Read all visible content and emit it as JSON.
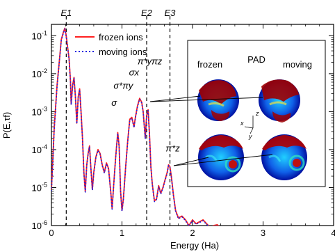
{
  "chart_data": {
    "type": "line",
    "xlabel": "Energy (Ha)",
    "ylabel": "P(E,τf)",
    "xlim": [
      0,
      4
    ],
    "ylim_log10": [
      -6,
      -0.7
    ],
    "log_y": true,
    "x_ticks": [
      "0",
      "1",
      "2",
      "3",
      "4"
    ],
    "y_ticks": [
      "10^-1",
      "10^-2",
      "10^-3",
      "10^-4",
      "10^-5",
      "10^-6"
    ],
    "legend_position": "top-center",
    "series": [
      {
        "name": "frozen ions",
        "style": "solid",
        "color": "#ff2020",
        "points": [
          [
            0.0,
            -5.05
          ],
          [
            0.04,
            -3.4
          ],
          [
            0.08,
            -2.3
          ],
          [
            0.11,
            -1.7
          ],
          [
            0.14,
            -1.1
          ],
          [
            0.17,
            -0.9
          ],
          [
            0.19,
            -0.8
          ],
          [
            0.21,
            -1.0
          ],
          [
            0.23,
            -1.3
          ],
          [
            0.25,
            -1.6
          ],
          [
            0.27,
            -2.2
          ],
          [
            0.28,
            -2.8
          ],
          [
            0.3,
            -2.3
          ],
          [
            0.32,
            -2.1
          ],
          [
            0.34,
            -2.6
          ],
          [
            0.36,
            -3.3
          ],
          [
            0.38,
            -2.6
          ],
          [
            0.4,
            -2.4
          ],
          [
            0.42,
            -3.0
          ],
          [
            0.44,
            -3.7
          ],
          [
            0.46,
            -4.6
          ],
          [
            0.48,
            -5.1
          ],
          [
            0.5,
            -4.4
          ],
          [
            0.52,
            -4.1
          ],
          [
            0.54,
            -3.9
          ],
          [
            0.56,
            -4.5
          ],
          [
            0.58,
            -5.05
          ],
          [
            0.6,
            -4.6
          ],
          [
            0.63,
            -4.2
          ],
          [
            0.66,
            -4.0
          ],
          [
            0.69,
            -4.1
          ],
          [
            0.72,
            -4.4
          ],
          [
            0.75,
            -4.6
          ],
          [
            0.78,
            -4.35
          ],
          [
            0.81,
            -4.5
          ],
          [
            0.84,
            -5.1
          ],
          [
            0.86,
            -5.55
          ],
          [
            0.88,
            -5.0
          ],
          [
            0.91,
            -4.2
          ],
          [
            0.94,
            -3.55
          ],
          [
            0.96,
            -3.9
          ],
          [
            0.98,
            -5.1
          ],
          [
            1.0,
            -5.6
          ],
          [
            1.02,
            -5.3
          ],
          [
            1.05,
            -4.5
          ],
          [
            1.08,
            -3.8
          ],
          [
            1.11,
            -3.2
          ],
          [
            1.14,
            -3.15
          ],
          [
            1.17,
            -3.4
          ],
          [
            1.19,
            -3.15
          ],
          [
            1.22,
            -2.85
          ],
          [
            1.25,
            -2.65
          ],
          [
            1.28,
            -2.75
          ],
          [
            1.3,
            -3.0
          ],
          [
            1.33,
            -3.7
          ],
          [
            1.35,
            -3.1
          ],
          [
            1.37,
            -2.95
          ],
          [
            1.39,
            -3.6
          ],
          [
            1.41,
            -4.45
          ],
          [
            1.43,
            -4.9
          ],
          [
            1.46,
            -5.35
          ],
          [
            1.49,
            -5.3
          ],
          [
            1.52,
            -4.95
          ],
          [
            1.55,
            -5.15
          ],
          [
            1.58,
            -5.0
          ],
          [
            1.61,
            -4.8
          ],
          [
            1.64,
            -4.6
          ],
          [
            1.66,
            -4.4
          ],
          [
            1.68,
            -4.45
          ],
          [
            1.7,
            -4.7
          ],
          [
            1.73,
            -5.2
          ],
          [
            1.76,
            -5.6
          ],
          [
            1.8,
            -5.8
          ],
          [
            1.85,
            -5.75
          ],
          [
            1.9,
            -5.85
          ],
          [
            1.95,
            -6.0
          ],
          [
            2.0,
            -5.85
          ],
          [
            2.05,
            -5.95
          ],
          [
            2.1,
            -5.9
          ],
          [
            2.15,
            -5.85
          ],
          [
            2.2,
            -5.95
          ],
          [
            2.25,
            -6.05
          ],
          [
            2.3,
            -6.0
          ],
          [
            2.35,
            -5.98
          ],
          [
            2.4,
            -6.05
          ],
          [
            2.45,
            -6.1
          ]
        ]
      },
      {
        "name": "moving ions",
        "style": "dotted",
        "color": "#2020e0",
        "points": [
          [
            0.0,
            -5.1
          ],
          [
            0.04,
            -3.45
          ],
          [
            0.08,
            -2.35
          ],
          [
            0.11,
            -1.72
          ],
          [
            0.14,
            -1.12
          ],
          [
            0.17,
            -0.92
          ],
          [
            0.19,
            -0.82
          ],
          [
            0.21,
            -1.02
          ],
          [
            0.23,
            -1.32
          ],
          [
            0.25,
            -1.62
          ],
          [
            0.27,
            -2.22
          ],
          [
            0.28,
            -2.82
          ],
          [
            0.3,
            -2.32
          ],
          [
            0.32,
            -2.12
          ],
          [
            0.34,
            -2.62
          ],
          [
            0.36,
            -3.32
          ],
          [
            0.38,
            -2.62
          ],
          [
            0.4,
            -2.42
          ],
          [
            0.42,
            -3.02
          ],
          [
            0.44,
            -3.72
          ],
          [
            0.46,
            -4.62
          ],
          [
            0.48,
            -5.12
          ],
          [
            0.5,
            -4.42
          ],
          [
            0.52,
            -4.12
          ],
          [
            0.54,
            -3.92
          ],
          [
            0.56,
            -4.52
          ],
          [
            0.58,
            -5.07
          ],
          [
            0.6,
            -4.62
          ],
          [
            0.63,
            -4.22
          ],
          [
            0.66,
            -4.02
          ],
          [
            0.69,
            -4.12
          ],
          [
            0.72,
            -4.42
          ],
          [
            0.75,
            -4.62
          ],
          [
            0.78,
            -4.37
          ],
          [
            0.81,
            -4.52
          ],
          [
            0.84,
            -5.12
          ],
          [
            0.86,
            -5.57
          ],
          [
            0.88,
            -5.02
          ],
          [
            0.91,
            -4.22
          ],
          [
            0.94,
            -3.57
          ],
          [
            0.96,
            -3.92
          ],
          [
            0.98,
            -5.12
          ],
          [
            1.0,
            -5.62
          ],
          [
            1.02,
            -5.32
          ],
          [
            1.05,
            -4.52
          ],
          [
            1.08,
            -3.82
          ],
          [
            1.11,
            -3.22
          ],
          [
            1.14,
            -3.17
          ],
          [
            1.17,
            -3.42
          ],
          [
            1.19,
            -3.17
          ],
          [
            1.22,
            -2.87
          ],
          [
            1.25,
            -2.67
          ],
          [
            1.28,
            -2.77
          ],
          [
            1.3,
            -3.02
          ],
          [
            1.33,
            -3.72
          ],
          [
            1.35,
            -3.12
          ],
          [
            1.37,
            -2.97
          ],
          [
            1.39,
            -3.62
          ],
          [
            1.41,
            -4.47
          ],
          [
            1.43,
            -4.92
          ],
          [
            1.46,
            -5.37
          ],
          [
            1.49,
            -5.32
          ],
          [
            1.52,
            -4.97
          ],
          [
            1.55,
            -5.17
          ],
          [
            1.58,
            -5.02
          ],
          [
            1.61,
            -4.82
          ],
          [
            1.64,
            -4.62
          ],
          [
            1.66,
            -4.42
          ],
          [
            1.68,
            -4.47
          ],
          [
            1.7,
            -4.72
          ],
          [
            1.73,
            -5.22
          ],
          [
            1.76,
            -5.62
          ],
          [
            1.8,
            -5.82
          ],
          [
            1.85,
            -5.77
          ],
          [
            1.9,
            -5.87
          ],
          [
            1.95,
            -6.02
          ],
          [
            2.0,
            -5.87
          ],
          [
            2.05,
            -5.97
          ],
          [
            2.1,
            -5.92
          ],
          [
            2.15,
            -5.87
          ],
          [
            2.2,
            -5.97
          ],
          [
            2.25,
            -6.05
          ],
          [
            2.3,
            -6.02
          ],
          [
            2.35,
            -6.0
          ],
          [
            2.4,
            -6.05
          ],
          [
            2.45,
            -6.1
          ]
        ]
      }
    ],
    "vlines": [
      {
        "label": "E1",
        "x": 0.21
      },
      {
        "label": "E2",
        "x": 1.35
      },
      {
        "label": "E3",
        "x": 1.68
      }
    ],
    "annotations": [
      {
        "text": "σ",
        "x": 0.85,
        "y": -2.85
      },
      {
        "text": "σ*πy",
        "x": 0.88,
        "y": -2.4
      },
      {
        "text": "σx",
        "x": 1.1,
        "y": -2.05
      },
      {
        "text": "π*yπz",
        "x": 1.22,
        "y": -1.75
      },
      {
        "text": "π*z",
        "x": 1.62,
        "y": -4.05
      }
    ],
    "inset": {
      "title": "PAD",
      "left_label": "frozen",
      "right_label": "moving",
      "axes": [
        "z",
        "x",
        "y"
      ]
    }
  }
}
